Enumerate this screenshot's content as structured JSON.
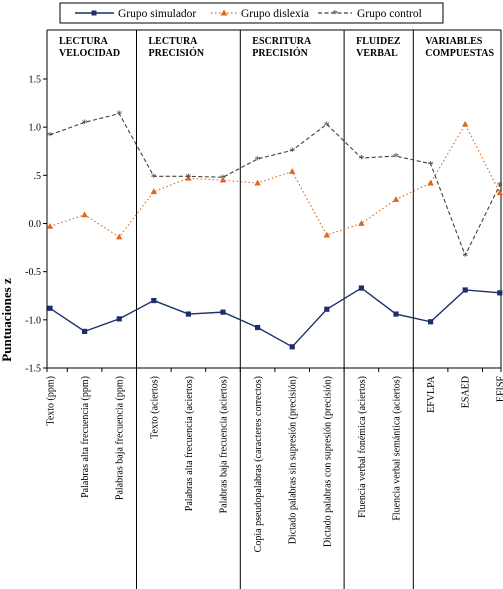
{
  "chart_data": {
    "type": "line",
    "title": "",
    "xlabel": "",
    "ylabel": "Puntuaciones z",
    "ylim": [
      -1.5,
      1.5
    ],
    "yticks": [
      1.5,
      1.0,
      0.5,
      0.0,
      -0.5,
      -1.0,
      -1.5
    ],
    "ytick_labels": [
      "1.5",
      "1.0",
      ".5",
      "0.0",
      "-0.5",
      "-1.0",
      "-1.5"
    ],
    "grid": false,
    "legend_position": "top",
    "categories": [
      "Texto (ppm)",
      "Palabras alta frecuencia (ppm)",
      "Palabras baja frecuencia (ppm)",
      "Texto (aciertos)",
      "Palabras alta frecuencia (aciertos)",
      "Palabras baja frecuencia (aciertos)",
      "Copia pseudopalabras (caracteres correctos)",
      "Dictado palabras sin supresión (precisión)",
      "Dictado palabras con supresión (precisión)",
      "Fluencia verbal fonémica (aciertos)",
      "Fluencia verbal semántica (aciertos)",
      "EFVLPA",
      "ESAED",
      "EFISF"
    ],
    "sections": [
      {
        "label_lines": [
          "LECTURA",
          "VELOCIDAD"
        ],
        "start": 0,
        "end": 2
      },
      {
        "label_lines": [
          "LECTURA",
          "PRECISIÓN"
        ],
        "start": 3,
        "end": 5
      },
      {
        "label_lines": [
          "ESCRITURA",
          "PRECISIÓN"
        ],
        "start": 6,
        "end": 8
      },
      {
        "label_lines": [
          "FLUIDEZ",
          "VERBAL"
        ],
        "start": 9,
        "end": 10
      },
      {
        "label_lines": [
          "VARIABLES",
          "COMPUESTAS"
        ],
        "start": 11,
        "end": 13
      }
    ],
    "series": [
      {
        "name": "Grupo simulador",
        "color": "#1c2f6b",
        "style": "solid",
        "marker": "square",
        "values": [
          -0.88,
          -1.12,
          -0.99,
          -0.8,
          -0.94,
          -0.92,
          -1.08,
          -1.28,
          -0.89,
          -0.67,
          -0.94,
          -1.02,
          -0.69,
          -0.72
        ]
      },
      {
        "name": "Grupo dislexia",
        "color": "#e0661c",
        "style": "dotted",
        "marker": "triangle",
        "values": [
          -0.03,
          0.09,
          -0.14,
          0.33,
          0.47,
          0.45,
          0.42,
          0.54,
          -0.12,
          0.0,
          0.25,
          0.42,
          1.03,
          0.32
        ]
      },
      {
        "name": "Grupo control",
        "color": "#404040",
        "style": "dashed",
        "marker": "star",
        "values": [
          0.92,
          1.05,
          1.14,
          0.49,
          0.49,
          0.48,
          0.67,
          0.76,
          1.03,
          0.68,
          0.7,
          0.62,
          -0.33,
          0.4
        ]
      }
    ]
  }
}
